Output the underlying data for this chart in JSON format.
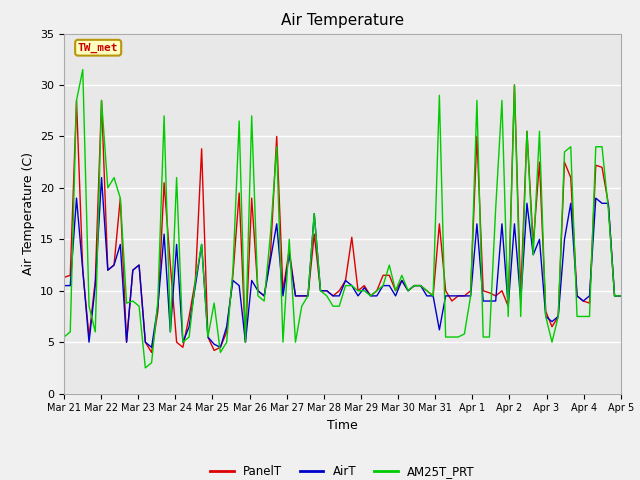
{
  "title": "Air Temperature",
  "xlabel": "Time",
  "ylabel": "Air Temperature (C)",
  "ylim": [
    0,
    35
  ],
  "yticks": [
    0,
    5,
    10,
    15,
    20,
    25,
    30,
    35
  ],
  "annotation_text": "TW_met",
  "annotation_bg": "#ffffc0",
  "annotation_border": "#b8960c",
  "annotation_text_color": "#cc0000",
  "series_colors": {
    "PanelT": "#dd0000",
    "AirT": "#0000cc",
    "AM25T_PRT": "#00cc00"
  },
  "line_width": 1.0,
  "plot_bg": "#e8e8e8",
  "fig_bg": "#f0f0f0",
  "grid_color": "#ffffff",
  "x_dates": [
    "Mar 21",
    "Mar 22",
    "Mar 23",
    "Mar 24",
    "Mar 25",
    "Mar 26",
    "Mar 27",
    "Mar 28",
    "Mar 29",
    "Mar 30",
    "Mar 31",
    "Apr 1",
    "Apr 2",
    "Apr 3",
    "Apr 4",
    "Apr 5"
  ],
  "n_per_day": 6,
  "n_days": 15,
  "PanelT": [
    11.3,
    11.5,
    28.5,
    12.0,
    5.5,
    11.0,
    28.5,
    12.0,
    12.5,
    19.0,
    5.0,
    12.0,
    12.5,
    5.0,
    4.0,
    8.0,
    20.5,
    12.5,
    5.0,
    4.5,
    7.5,
    11.0,
    23.8,
    5.5,
    4.2,
    4.5,
    6.0,
    11.5,
    19.5,
    5.0,
    19.0,
    10.0,
    9.5,
    13.5,
    25.0,
    10.0,
    14.0,
    9.5,
    9.5,
    9.5,
    15.5,
    10.0,
    10.0,
    9.5,
    10.0,
    11.0,
    15.2,
    10.0,
    10.5,
    9.5,
    10.0,
    11.5,
    11.5,
    10.0,
    11.0,
    10.0,
    10.5,
    10.5,
    10.0,
    9.5,
    16.5,
    10.0,
    9.0,
    9.5,
    9.5,
    10.0,
    25.0,
    10.0,
    9.8,
    9.5,
    10.0,
    8.5,
    30.0,
    9.5,
    25.5,
    14.5,
    22.5,
    8.0,
    6.5,
    7.5,
    22.5,
    21.0,
    9.5,
    9.0,
    8.8,
    22.2,
    22.0,
    18.5,
    9.5,
    9.5
  ],
  "AirT": [
    10.5,
    10.5,
    19.0,
    12.0,
    5.0,
    10.5,
    21.0,
    12.0,
    12.5,
    14.5,
    5.0,
    12.0,
    12.5,
    5.0,
    4.5,
    8.5,
    15.5,
    6.0,
    14.5,
    5.0,
    6.5,
    10.5,
    14.5,
    5.5,
    4.8,
    4.5,
    6.5,
    11.0,
    10.5,
    5.0,
    11.0,
    10.0,
    9.5,
    13.0,
    16.5,
    9.5,
    13.5,
    9.5,
    9.5,
    9.5,
    17.5,
    10.0,
    10.0,
    9.5,
    9.5,
    11.0,
    10.5,
    9.5,
    10.3,
    9.5,
    9.5,
    10.5,
    10.5,
    9.5,
    11.0,
    10.0,
    10.5,
    10.5,
    9.5,
    9.5,
    6.2,
    9.5,
    9.5,
    9.5,
    9.5,
    9.5,
    16.5,
    9.0,
    9.0,
    9.0,
    16.5,
    8.5,
    16.5,
    9.0,
    18.5,
    13.5,
    15.0,
    7.5,
    7.0,
    7.5,
    15.0,
    18.5,
    9.5,
    9.0,
    9.5,
    19.0,
    18.5,
    18.5,
    9.5,
    9.5
  ],
  "AM25T_PRT": [
    5.5,
    6.0,
    28.5,
    31.5,
    8.5,
    6.0,
    28.5,
    20.0,
    21.0,
    19.0,
    8.8,
    9.0,
    8.5,
    2.5,
    3.0,
    9.0,
    27.0,
    6.0,
    21.0,
    5.0,
    5.5,
    11.0,
    14.5,
    5.5,
    8.8,
    4.0,
    5.0,
    12.0,
    26.5,
    5.0,
    27.0,
    9.5,
    9.0,
    15.5,
    24.0,
    5.0,
    15.0,
    5.0,
    8.5,
    9.5,
    17.5,
    10.0,
    9.5,
    8.5,
    8.5,
    10.5,
    10.5,
    10.0,
    10.0,
    9.5,
    10.0,
    10.5,
    12.5,
    10.0,
    11.5,
    10.0,
    10.5,
    10.5,
    10.0,
    9.5,
    29.0,
    5.5,
    5.5,
    5.5,
    5.8,
    9.5,
    28.5,
    5.5,
    5.5,
    18.0,
    28.5,
    7.5,
    30.0,
    7.5,
    25.5,
    13.5,
    25.5,
    7.5,
    5.0,
    7.5,
    23.5,
    24.0,
    7.5,
    7.5,
    7.5,
    24.0,
    24.0,
    18.0,
    9.5,
    9.5
  ]
}
